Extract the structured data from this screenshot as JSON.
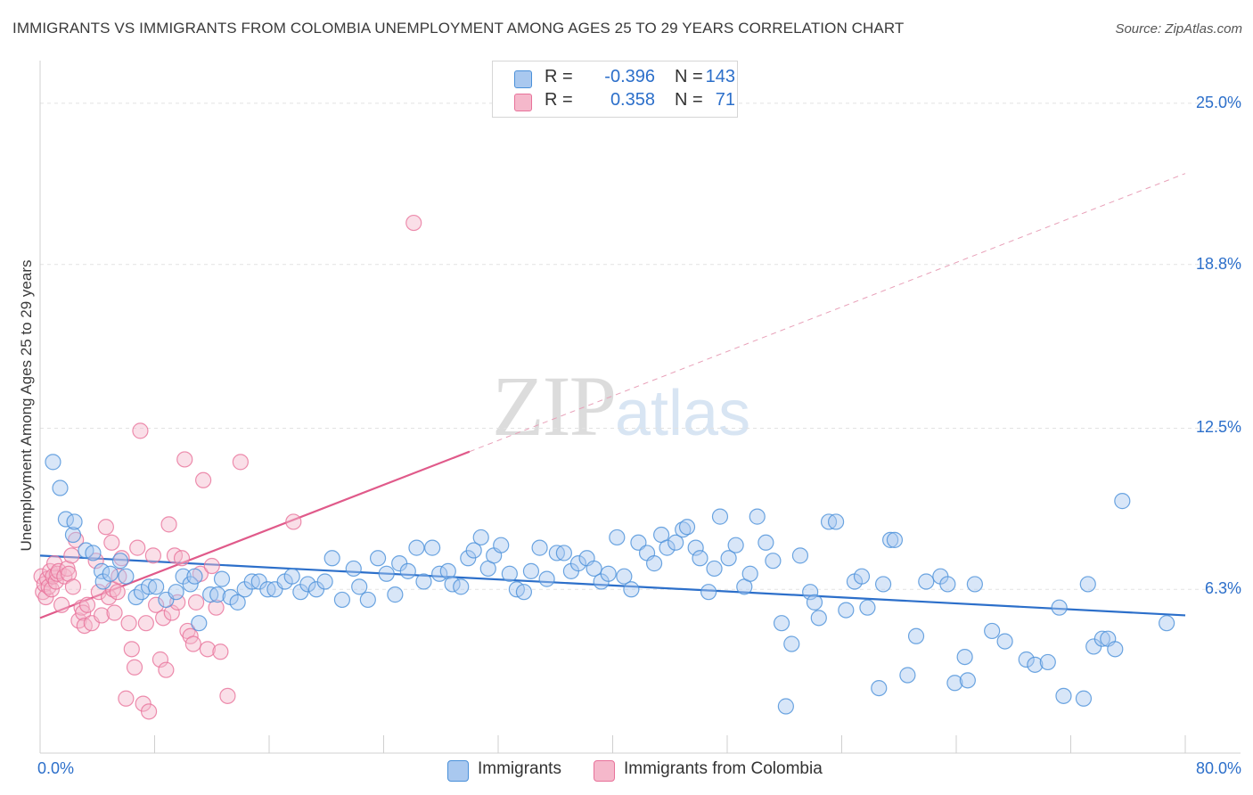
{
  "title": "IMMIGRANTS VS IMMIGRANTS FROM COLOMBIA UNEMPLOYMENT AMONG AGES 25 TO 29 YEARS CORRELATION CHART",
  "source": "Source: ZipAtlas.com",
  "watermark": {
    "zip": "ZIP",
    "atlas": "atlas"
  },
  "legend": {
    "rows": [
      {
        "r_label": "R =",
        "r_value": "-0.396",
        "n_label": "N =",
        "n_value": "143",
        "color": "#a9c8ef"
      },
      {
        "r_label": "R =",
        "r_value": "0.358",
        "n_label": "N =",
        "n_value": "71",
        "color": "#f5b8cb"
      }
    ]
  },
  "bottom_legend": [
    "Immigrants",
    "Immigrants from Colombia"
  ],
  "chart_data": {
    "type": "scatter",
    "title": "IMMIGRANTS VS IMMIGRANTS FROM COLOMBIA UNEMPLOYMENT AMONG AGES 25 TO 29 YEARS CORRELATION CHART",
    "xlabel": "",
    "ylabel": "Unemployment Among Ages 25 to 29 years",
    "xlim": [
      0,
      80
    ],
    "ylim": [
      0,
      26.3
    ],
    "x_tick_labels": [
      "0.0%",
      "80.0%"
    ],
    "y_ticks": [
      6.3,
      12.5,
      18.8,
      25.0
    ],
    "y_tick_labels": [
      "6.3%",
      "12.5%",
      "18.8%",
      "25.0%"
    ],
    "grid": true,
    "legend_position": "top-center",
    "series": [
      {
        "name": "Immigrants",
        "color": "#4a90d9",
        "fill": "#a9c8ef",
        "r": -0.396,
        "n": 143,
        "trend": {
          "x0": 0,
          "y0": 7.6,
          "x1": 80,
          "y1": 5.3
        },
        "points": [
          [
            0.9,
            11.2
          ],
          [
            1.4,
            10.2
          ],
          [
            1.8,
            9.0
          ],
          [
            2.3,
            8.4
          ],
          [
            2.4,
            8.9
          ],
          [
            3.2,
            7.8
          ],
          [
            3.7,
            7.7
          ],
          [
            4.3,
            7.0
          ],
          [
            4.4,
            6.6
          ],
          [
            4.9,
            6.9
          ],
          [
            5.6,
            7.4
          ],
          [
            6.0,
            6.8
          ],
          [
            6.7,
            6.0
          ],
          [
            7.1,
            6.2
          ],
          [
            7.6,
            6.4
          ],
          [
            8.1,
            6.4
          ],
          [
            8.8,
            5.9
          ],
          [
            9.5,
            6.2
          ],
          [
            10.0,
            6.8
          ],
          [
            10.5,
            6.5
          ],
          [
            10.8,
            6.8
          ],
          [
            11.1,
            5.0
          ],
          [
            11.9,
            6.1
          ],
          [
            12.4,
            6.1
          ],
          [
            12.7,
            6.7
          ],
          [
            13.3,
            6.0
          ],
          [
            13.8,
            5.8
          ],
          [
            14.3,
            6.3
          ],
          [
            14.8,
            6.6
          ],
          [
            15.3,
            6.6
          ],
          [
            15.9,
            6.3
          ],
          [
            16.4,
            6.3
          ],
          [
            17.1,
            6.6
          ],
          [
            17.6,
            6.8
          ],
          [
            18.2,
            6.2
          ],
          [
            18.7,
            6.5
          ],
          [
            19.3,
            6.3
          ],
          [
            19.9,
            6.6
          ],
          [
            20.4,
            7.5
          ],
          [
            21.1,
            5.9
          ],
          [
            21.9,
            7.1
          ],
          [
            22.3,
            6.4
          ],
          [
            22.9,
            5.9
          ],
          [
            23.6,
            7.5
          ],
          [
            24.2,
            6.9
          ],
          [
            24.8,
            6.1
          ],
          [
            25.1,
            7.3
          ],
          [
            25.7,
            7.0
          ],
          [
            26.3,
            7.9
          ],
          [
            26.8,
            6.6
          ],
          [
            27.4,
            7.9
          ],
          [
            27.9,
            6.9
          ],
          [
            28.5,
            7.0
          ],
          [
            28.8,
            6.5
          ],
          [
            29.4,
            6.4
          ],
          [
            29.9,
            7.5
          ],
          [
            30.3,
            7.8
          ],
          [
            30.8,
            8.3
          ],
          [
            31.3,
            7.1
          ],
          [
            31.7,
            7.6
          ],
          [
            32.2,
            8.0
          ],
          [
            32.8,
            6.9
          ],
          [
            33.3,
            6.3
          ],
          [
            33.8,
            6.2
          ],
          [
            34.3,
            7.0
          ],
          [
            34.9,
            7.9
          ],
          [
            35.4,
            6.7
          ],
          [
            36.1,
            7.7
          ],
          [
            36.6,
            7.7
          ],
          [
            37.1,
            7.0
          ],
          [
            37.6,
            7.3
          ],
          [
            38.2,
            7.5
          ],
          [
            38.7,
            7.1
          ],
          [
            39.2,
            6.6
          ],
          [
            39.7,
            6.9
          ],
          [
            40.3,
            8.3
          ],
          [
            40.8,
            6.8
          ],
          [
            41.3,
            6.3
          ],
          [
            41.8,
            8.1
          ],
          [
            42.4,
            7.7
          ],
          [
            42.9,
            7.3
          ],
          [
            43.4,
            8.4
          ],
          [
            43.8,
            7.9
          ],
          [
            44.4,
            8.1
          ],
          [
            44.9,
            8.6
          ],
          [
            45.2,
            8.7
          ],
          [
            45.8,
            7.9
          ],
          [
            46.1,
            7.5
          ],
          [
            46.7,
            6.2
          ],
          [
            47.1,
            7.1
          ],
          [
            47.5,
            9.1
          ],
          [
            48.1,
            7.5
          ],
          [
            48.6,
            8.0
          ],
          [
            49.2,
            6.4
          ],
          [
            49.6,
            6.9
          ],
          [
            50.1,
            9.1
          ],
          [
            50.7,
            8.1
          ],
          [
            51.2,
            7.4
          ],
          [
            51.8,
            5.0
          ],
          [
            52.1,
            1.8
          ],
          [
            52.5,
            4.2
          ],
          [
            53.1,
            7.6
          ],
          [
            53.8,
            6.2
          ],
          [
            54.1,
            5.8
          ],
          [
            54.4,
            5.2
          ],
          [
            55.1,
            8.9
          ],
          [
            55.6,
            8.9
          ],
          [
            56.3,
            5.5
          ],
          [
            56.9,
            6.6
          ],
          [
            57.4,
            6.8
          ],
          [
            57.8,
            5.6
          ],
          [
            58.6,
            2.5
          ],
          [
            58.9,
            6.5
          ],
          [
            59.4,
            8.2
          ],
          [
            59.7,
            8.2
          ],
          [
            60.6,
            3.0
          ],
          [
            61.2,
            4.5
          ],
          [
            61.9,
            6.6
          ],
          [
            62.9,
            6.8
          ],
          [
            63.4,
            6.5
          ],
          [
            63.9,
            2.7
          ],
          [
            64.6,
            3.7
          ],
          [
            64.8,
            2.8
          ],
          [
            65.3,
            6.5
          ],
          [
            66.5,
            4.7
          ],
          [
            67.4,
            4.3
          ],
          [
            68.9,
            3.6
          ],
          [
            69.5,
            3.4
          ],
          [
            70.4,
            3.5
          ],
          [
            71.2,
            5.6
          ],
          [
            71.5,
            2.2
          ],
          [
            72.9,
            2.1
          ],
          [
            73.2,
            6.5
          ],
          [
            73.6,
            4.1
          ],
          [
            74.2,
            4.4
          ],
          [
            74.6,
            4.4
          ],
          [
            75.1,
            4.0
          ],
          [
            75.6,
            9.7
          ],
          [
            78.7,
            5.0
          ]
        ]
      },
      {
        "name": "Immigrants from Colombia",
        "color": "#e8729a",
        "fill": "#f5b8cb",
        "r": 0.358,
        "n": 71,
        "trend": {
          "x0": 0,
          "y0": 5.2,
          "x1": 30,
          "y1": 11.6,
          "dashed_to_x": 80,
          "dashed_to_y": 22.3
        },
        "points": [
          [
            0.1,
            6.8
          ],
          [
            0.2,
            6.2
          ],
          [
            0.3,
            6.5
          ],
          [
            0.4,
            6.0
          ],
          [
            0.5,
            6.7
          ],
          [
            0.6,
            6.4
          ],
          [
            0.7,
            7.0
          ],
          [
            0.8,
            6.3
          ],
          [
            0.9,
            6.8
          ],
          [
            1.0,
            7.3
          ],
          [
            1.1,
            6.6
          ],
          [
            1.2,
            6.9
          ],
          [
            1.3,
            7.0
          ],
          [
            1.5,
            5.7
          ],
          [
            1.7,
            6.8
          ],
          [
            1.9,
            7.1
          ],
          [
            2.0,
            6.9
          ],
          [
            2.2,
            7.6
          ],
          [
            2.3,
            6.4
          ],
          [
            2.5,
            8.2
          ],
          [
            2.7,
            5.1
          ],
          [
            2.9,
            5.6
          ],
          [
            3.0,
            5.4
          ],
          [
            3.1,
            4.9
          ],
          [
            3.3,
            5.7
          ],
          [
            3.6,
            5.0
          ],
          [
            3.9,
            7.4
          ],
          [
            4.1,
            6.2
          ],
          [
            4.3,
            5.3
          ],
          [
            4.6,
            8.7
          ],
          [
            4.8,
            6.0
          ],
          [
            5.0,
            8.1
          ],
          [
            5.1,
            6.3
          ],
          [
            5.2,
            5.4
          ],
          [
            5.4,
            6.2
          ],
          [
            5.7,
            7.5
          ],
          [
            6.0,
            2.1
          ],
          [
            6.2,
            5.0
          ],
          [
            6.4,
            4.0
          ],
          [
            6.6,
            3.3
          ],
          [
            6.8,
            7.9
          ],
          [
            7.0,
            12.4
          ],
          [
            7.2,
            1.9
          ],
          [
            7.4,
            5.0
          ],
          [
            7.6,
            1.6
          ],
          [
            7.9,
            7.6
          ],
          [
            8.1,
            5.7
          ],
          [
            8.4,
            3.6
          ],
          [
            8.6,
            5.2
          ],
          [
            8.8,
            3.2
          ],
          [
            9.0,
            8.8
          ],
          [
            9.2,
            5.4
          ],
          [
            9.4,
            7.6
          ],
          [
            9.6,
            5.8
          ],
          [
            9.9,
            7.5
          ],
          [
            10.1,
            11.3
          ],
          [
            10.3,
            4.7
          ],
          [
            10.5,
            4.5
          ],
          [
            10.7,
            4.2
          ],
          [
            10.9,
            5.8
          ],
          [
            11.2,
            6.9
          ],
          [
            11.4,
            10.5
          ],
          [
            11.7,
            4.0
          ],
          [
            12.0,
            7.2
          ],
          [
            12.3,
            5.6
          ],
          [
            12.6,
            3.9
          ],
          [
            13.1,
            2.2
          ],
          [
            14.0,
            11.2
          ],
          [
            17.7,
            8.9
          ],
          [
            26.1,
            20.4
          ],
          [
            5.5,
            6.8
          ]
        ]
      }
    ]
  }
}
